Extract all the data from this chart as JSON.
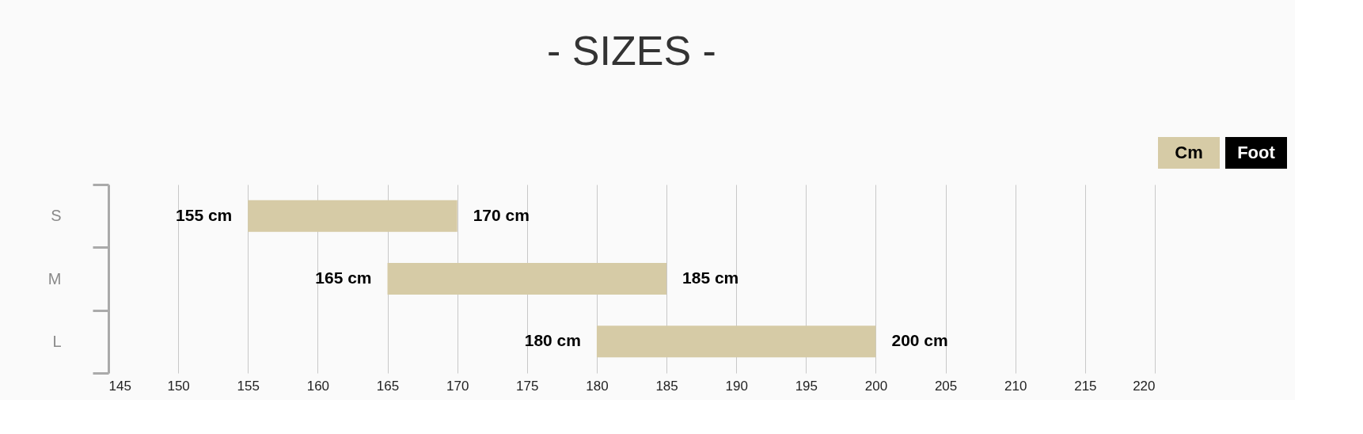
{
  "chart_data": {
    "type": "bar",
    "orientation": "horizontal",
    "title": "- SIZES -",
    "categories": [
      "S",
      "M",
      "L"
    ],
    "base": [
      155,
      165,
      180
    ],
    "values": [
      15,
      20,
      20
    ],
    "color": "#d6cba6",
    "xlim": [
      145,
      220
    ],
    "xticks": [
      145,
      150,
      155,
      160,
      165,
      170,
      175,
      180,
      185,
      190,
      195,
      200,
      205,
      210,
      215,
      220
    ],
    "grid": "x",
    "annotations": [
      {
        "text": "155 cm",
        "x": 155,
        "y": "S"
      },
      {
        "text": "170 cm",
        "x": 170,
        "y": "S"
      },
      {
        "text": "165 cm",
        "x": 165,
        "y": "M"
      },
      {
        "text": "185 cm",
        "x": 185,
        "y": "M"
      },
      {
        "text": "180 cm",
        "x": 180,
        "y": "L"
      },
      {
        "text": "200 cm",
        "x": 200,
        "y": "L"
      },
      "Cm",
      "Foot"
    ]
  }
}
